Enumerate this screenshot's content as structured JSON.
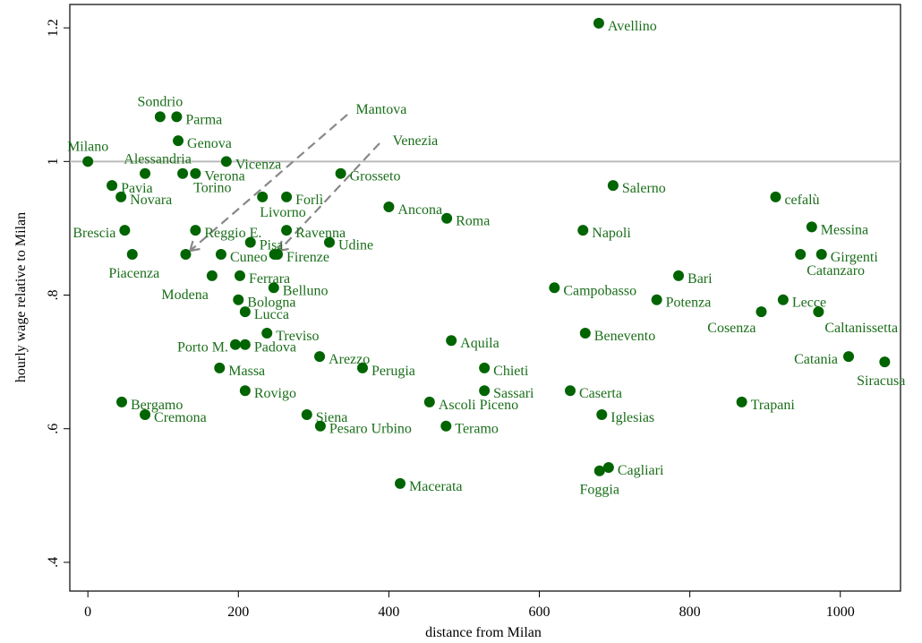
{
  "chart_data": {
    "type": "scatter",
    "xlabel": "distance from Milan",
    "ylabel": "hourly wage relative to Milan",
    "color": "#006400",
    "labels": [
      "Milano",
      "Alessandria",
      "Pavia",
      "Novara",
      "Sondrio",
      "Parma",
      "Genova",
      "Torino",
      "Verona",
      "Vicenza",
      "Brescia",
      "Piacenza",
      "Reggio E.",
      "Mantova",
      "Cuneo",
      "Venezia",
      "Firenze",
      "Modena",
      "Livorno",
      "Forlì",
      "Pisa",
      "Ravenna",
      "Grosseto",
      "Ancona",
      "Udine",
      "Roma",
      "Ferrara",
      "Belluno",
      "Bologna",
      "Lucca",
      "Treviso",
      "Porto M.",
      "Padova",
      "Massa",
      "Arezzo",
      "Perugia",
      "Aquila",
      "Chieti",
      "Rovigo",
      "Sassari",
      "Ascoli Piceno",
      "Siena",
      "Pesaro Urbino",
      "Teramo",
      "Macerata",
      "Bergamo",
      "Cremona",
      "Avellino",
      "Salerno",
      "Napoli",
      "Campobasso",
      "Benevento",
      "Caserta",
      "Iglesias",
      "Cagliari",
      "Foggia",
      "Bari",
      "Potenza",
      "Cosenza",
      "Lecce",
      "cefalù",
      "Messina",
      "Girgenti",
      "Catanzaro",
      "Caltanissetta",
      "Catania",
      "Siracusa",
      "Trapani"
    ],
    "x": [
      0,
      76,
      32,
      44,
      96,
      118,
      120,
      126,
      143,
      184,
      49,
      59,
      143,
      130,
      177,
      248,
      252,
      165,
      232,
      264,
      216,
      264,
      336,
      400,
      321,
      477,
      202,
      247,
      200,
      209,
      238,
      196,
      209,
      175,
      308,
      365,
      483,
      527,
      209,
      527,
      454,
      291,
      309,
      476,
      415,
      45,
      76,
      679,
      698,
      658,
      620,
      661,
      641,
      683,
      692,
      680,
      785,
      756,
      895,
      924,
      914,
      962,
      975,
      947,
      971,
      1011,
      1059,
      869
    ],
    "values": [
      1.0,
      0.982,
      0.964,
      0.947,
      1.067,
      1.067,
      1.031,
      0.982,
      0.982,
      1.0,
      0.897,
      0.861,
      0.897,
      0.861,
      0.861,
      0.861,
      0.861,
      0.829,
      0.947,
      0.947,
      0.879,
      0.897,
      0.982,
      0.932,
      0.879,
      0.915,
      0.829,
      0.811,
      0.793,
      0.775,
      0.743,
      0.726,
      0.726,
      0.691,
      0.708,
      0.691,
      0.732,
      0.691,
      0.657,
      0.657,
      0.64,
      0.621,
      0.604,
      0.604,
      0.518,
      0.64,
      0.621,
      1.207,
      0.964,
      0.897,
      0.811,
      0.743,
      0.657,
      0.621,
      0.542,
      0.537,
      0.829,
      0.793,
      0.775,
      0.793,
      0.947,
      0.902,
      0.861,
      0.861,
      0.775,
      0.708,
      0.7,
      0.64
    ],
    "xlim": [
      -24,
      1080
    ],
    "ylim": [
      0.357,
      1.235
    ],
    "xticks": [
      0,
      200,
      400,
      600,
      800,
      1000
    ],
    "yticks": [
      {
        "value": 0.4,
        "label": ".4"
      },
      {
        "value": 0.6,
        "label": ".6"
      },
      {
        "value": 0.8,
        "label": ".8"
      },
      1,
      1.2
    ],
    "reference_line": 1
  }
}
